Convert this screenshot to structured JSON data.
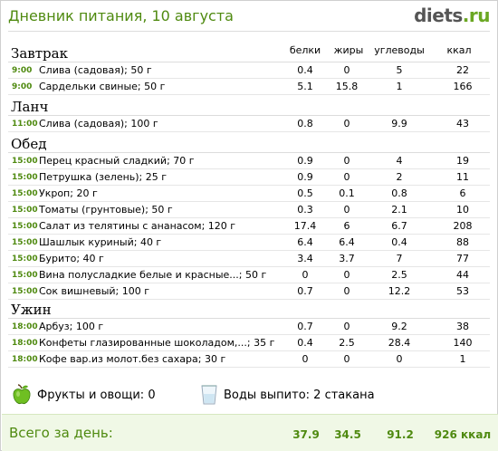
{
  "header": {
    "title": "Дневник питания, 10 августа",
    "logo_part1": "diets",
    "logo_part2": ".ru"
  },
  "columns": {
    "protein": "белки",
    "fat": "жиры",
    "carbs": "углеводы",
    "kcal": "ккал"
  },
  "meals": [
    {
      "title": "Завтрак",
      "items": [
        {
          "time": "9:00",
          "name": "Слива (садовая); 50 г",
          "protein": "0.4",
          "fat": "0",
          "carbs": "5",
          "kcal": "22"
        },
        {
          "time": "9:00",
          "name": "Сардельки свиные; 50 г",
          "protein": "5.1",
          "fat": "15.8",
          "carbs": "1",
          "kcal": "166"
        }
      ]
    },
    {
      "title": "Ланч",
      "items": [
        {
          "time": "11:00",
          "name": "Слива (садовая); 100 г",
          "protein": "0.8",
          "fat": "0",
          "carbs": "9.9",
          "kcal": "43"
        }
      ]
    },
    {
      "title": "Обед",
      "items": [
        {
          "time": "15:00",
          "name": "Перец красный сладкий; 70 г",
          "protein": "0.9",
          "fat": "0",
          "carbs": "4",
          "kcal": "19"
        },
        {
          "time": "15:00",
          "name": "Петрушка (зелень); 25 г",
          "protein": "0.9",
          "fat": "0",
          "carbs": "2",
          "kcal": "11"
        },
        {
          "time": "15:00",
          "name": "Укроп; 20 г",
          "protein": "0.5",
          "fat": "0.1",
          "carbs": "0.8",
          "kcal": "6"
        },
        {
          "time": "15:00",
          "name": "Томаты (грунтовые); 50 г",
          "protein": "0.3",
          "fat": "0",
          "carbs": "2.1",
          "kcal": "10"
        },
        {
          "time": "15:00",
          "name": "Салат из телятины с ананасом; 120 г",
          "protein": "17.4",
          "fat": "6",
          "carbs": "6.7",
          "kcal": "208"
        },
        {
          "time": "15:00",
          "name": "Шашлык куриный; 40 г",
          "protein": "6.4",
          "fat": "6.4",
          "carbs": "0.4",
          "kcal": "88"
        },
        {
          "time": "15:00",
          "name": "Бурито; 40 г",
          "protein": "3.4",
          "fat": "3.7",
          "carbs": "7",
          "kcal": "77"
        },
        {
          "time": "15:00",
          "name": "Вина полусладкие белые и красные...; 50 г",
          "protein": "0",
          "fat": "0",
          "carbs": "2.5",
          "kcal": "44"
        },
        {
          "time": "15:00",
          "name": "Сок вишневый; 100 г",
          "protein": "0.7",
          "fat": "0",
          "carbs": "12.2",
          "kcal": "53"
        }
      ]
    },
    {
      "title": "Ужин",
      "items": [
        {
          "time": "18:00",
          "name": "Арбуз; 100 г",
          "protein": "0.7",
          "fat": "0",
          "carbs": "9.2",
          "kcal": "38"
        },
        {
          "time": "18:00",
          "name": "Конфеты глазированные шоколадом,...; 35 г",
          "protein": "0.4",
          "fat": "2.5",
          "carbs": "28.4",
          "kcal": "140"
        },
        {
          "time": "18:00",
          "name": "Кофе вар.из молот.без сахара; 30 г",
          "protein": "0",
          "fat": "0",
          "carbs": "0",
          "kcal": "1"
        }
      ]
    }
  ],
  "extras": {
    "fruit_icon": "green-apple-icon",
    "fruit_label": "Фрукты и овощи: 0",
    "water_icon": "water-glass-icon",
    "water_label": "Воды выпито: 2 стакана"
  },
  "totals": {
    "label": "Всего за день:",
    "protein": "37.9",
    "fat": "34.5",
    "carbs": "91.2",
    "kcal": "926 ккал"
  },
  "colors": {
    "accent_green": "#4f8a10",
    "totals_bg": "#f0f8e6"
  }
}
